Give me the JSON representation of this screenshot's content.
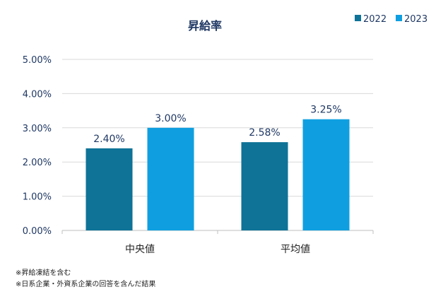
{
  "chart_data": {
    "type": "bar",
    "title": "昇給率",
    "categories": [
      "中央値",
      "平均値"
    ],
    "series": [
      {
        "name": "2022",
        "values": [
          2.4,
          2.58
        ],
        "labels": [
          "2.40%",
          "2.58%"
        ],
        "color": "#0e7397"
      },
      {
        "name": "2023",
        "values": [
          3.0,
          3.25
        ],
        "labels": [
          "3.00%",
          "3.25%"
        ],
        "color": "#0f9fe0"
      }
    ],
    "ylim": [
      0,
      5
    ],
    "yticks": [
      "0.00%",
      "1.00%",
      "2.00%",
      "3.00%",
      "4.00%",
      "5.00%"
    ],
    "xlabel": "",
    "ylabel": "",
    "grid": true,
    "legend": "top-right"
  },
  "notes": [
    "※昇給凍結を含む",
    "※日系企業・外資系企業の回答を含んだ結果"
  ]
}
